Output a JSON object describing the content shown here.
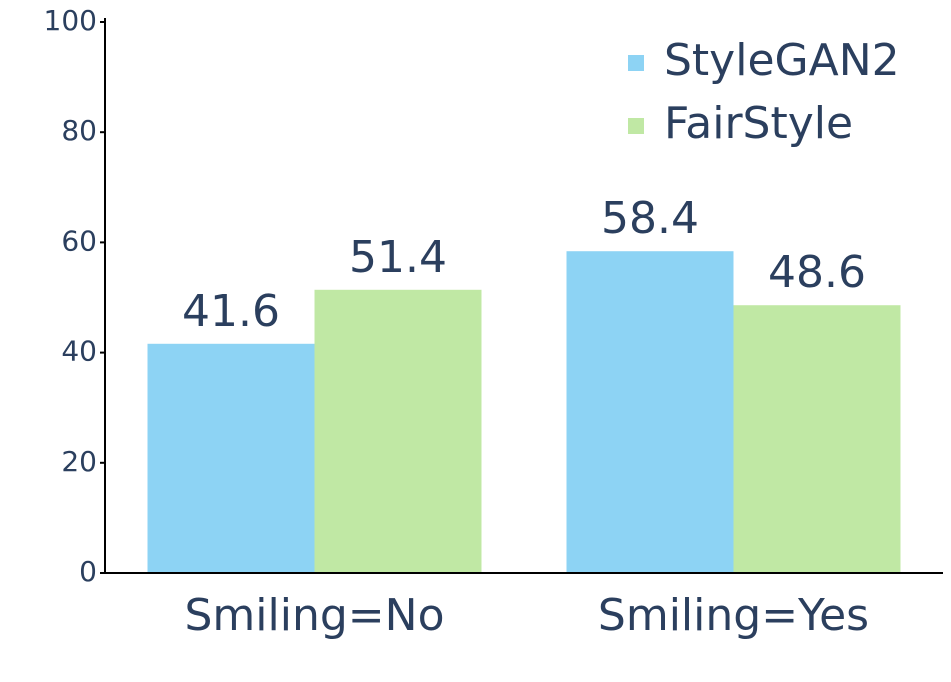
{
  "chart_data": {
    "type": "bar",
    "categories": [
      "Smiling=No",
      "Smiling=Yes"
    ],
    "series": [
      {
        "name": "StyleGAN2",
        "color": "#8dd3f4",
        "values": [
          41.6,
          58.4
        ]
      },
      {
        "name": "FairStyle",
        "color": "#c0e8a4",
        "values": [
          51.4,
          48.6
        ]
      }
    ],
    "ylim": [
      0,
      100
    ],
    "yticks": [
      0,
      20,
      40,
      60,
      80,
      100
    ],
    "grid": false,
    "legend": "top-right"
  }
}
